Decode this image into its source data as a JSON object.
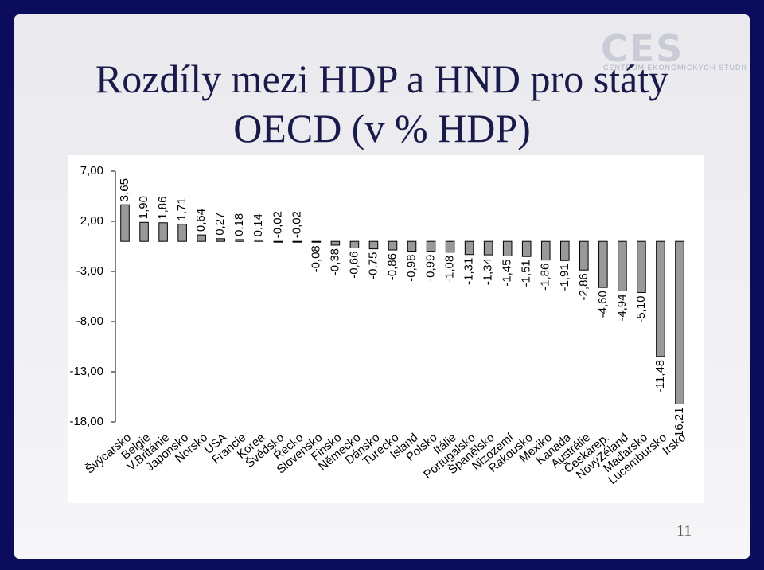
{
  "chart_data": {
    "type": "bar",
    "title": "Rozdíly mezi HDP a HND pro státy OECD (v % HDP)",
    "categories": [
      "Švýcarsko",
      "Belgie",
      "V.Británie",
      "Japonsko",
      "Norsko",
      "USA",
      "Francie",
      "Korea",
      "Švédsko",
      "Řecko",
      "Slovensko",
      "Finsko",
      "Německo",
      "Dánsko",
      "Turecko",
      "Island",
      "Polsko",
      "Itálie",
      "Portugalsko",
      "Španělsko",
      "Nizozemí",
      "Rakousko",
      "Mexiko",
      "Kanada",
      "Austrálie",
      "Českárep.",
      "NovýZéland",
      "Maďarsko",
      "Lucembursko",
      "Irsko"
    ],
    "values": [
      3.65,
      1.9,
      1.86,
      1.71,
      0.64,
      0.27,
      0.18,
      0.14,
      -0.02,
      -0.02,
      -0.08,
      -0.38,
      -0.66,
      -0.75,
      -0.86,
      -0.98,
      -0.99,
      -1.08,
      -1.31,
      -1.34,
      -1.45,
      -1.51,
      -1.86,
      -1.91,
      -2.86,
      -4.6,
      -4.94,
      -5.1,
      -11.48,
      -16.21
    ],
    "value_labels": [
      "3,65",
      "1,90",
      "1,86",
      "1,71",
      "0,64",
      "0,27",
      "0,18",
      "0,14",
      "-0,02",
      "-0,02",
      "-0,08",
      "-0,38",
      "-0,66",
      "-0,75",
      "-0,86",
      "-0,98",
      "-0,99",
      "-1,08",
      "-1,31",
      "-1,34",
      "-1,45",
      "-1,51",
      "-1,86",
      "-1,91",
      "-2,86",
      "-4,60",
      "-4,94",
      "-5,10",
      "-11,48",
      "-16,21"
    ],
    "color": "#999999",
    "ylim": [
      -18,
      7
    ],
    "yticks": [
      {
        "value": 7,
        "label": "7,00"
      },
      {
        "value": 2,
        "label": "2,00"
      },
      {
        "value": -3,
        "label": "-3,00"
      },
      {
        "value": -8,
        "label": "-8,00"
      },
      {
        "value": -13,
        "label": "-13,00"
      },
      {
        "value": -18,
        "label": "-18,00"
      }
    ],
    "grid": false
  },
  "logo": {
    "text": "CES",
    "subtitle": "CENTRUM EKONOMICKÝCH STUDIÍ"
  },
  "page_number": "11"
}
